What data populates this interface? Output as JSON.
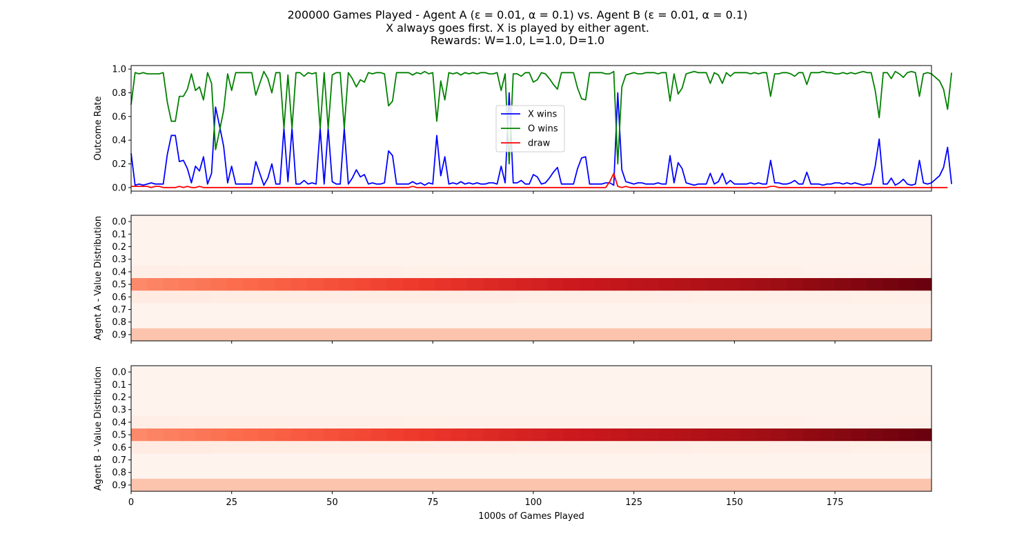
{
  "figure": {
    "title_lines": [
      "200000 Games Played - Agent A (ε = 0.01, α = 0.1) vs. Agent B (ε = 0.01, α = 0.1)",
      "X always goes first.  X is played by either agent.",
      "Rewards: W=1.0, L=1.0, D=1.0"
    ]
  },
  "chart_data": [
    {
      "type": "line",
      "ylabel": "Outcome Rate",
      "xlim": [
        0,
        199
      ],
      "ylim": [
        -0.03,
        1.03
      ],
      "xticks": [
        0,
        25,
        50,
        75,
        100,
        125,
        150,
        175
      ],
      "yticks": [
        0.0,
        0.2,
        0.4,
        0.6,
        0.8,
        1.0
      ],
      "ytick_labels": [
        "0.0",
        "0.2",
        "0.4",
        "0.6",
        "0.8",
        "1.0"
      ],
      "legend_position": "center",
      "series": [
        {
          "name": "X wins",
          "color": "#0000ff",
          "values": [
            0.29,
            0.02,
            0.03,
            0.02,
            0.03,
            0.04,
            0.03,
            0.03,
            0.03,
            0.28,
            0.44,
            0.44,
            0.22,
            0.23,
            0.16,
            0.04,
            0.18,
            0.14,
            0.26,
            0.03,
            0.12,
            0.68,
            0.52,
            0.35,
            0.04,
            0.18,
            0.03,
            0.03,
            0.03,
            0.03,
            0.03,
            0.22,
            0.12,
            0.02,
            0.08,
            0.2,
            0.03,
            0.03,
            0.5,
            0.05,
            0.5,
            0.03,
            0.03,
            0.06,
            0.03,
            0.04,
            0.03,
            0.5,
            0.03,
            0.5,
            0.05,
            0.03,
            0.03,
            0.5,
            0.03,
            0.08,
            0.15,
            0.09,
            0.11,
            0.03,
            0.04,
            0.03,
            0.03,
            0.04,
            0.31,
            0.27,
            0.03,
            0.03,
            0.03,
            0.03,
            0.05,
            0.03,
            0.04,
            0.02,
            0.04,
            0.03,
            0.44,
            0.1,
            0.26,
            0.03,
            0.04,
            0.03,
            0.05,
            0.03,
            0.04,
            0.03,
            0.04,
            0.03,
            0.03,
            0.04,
            0.04,
            0.03,
            0.18,
            0.04,
            0.8,
            0.04,
            0.04,
            0.06,
            0.03,
            0.03,
            0.11,
            0.09,
            0.03,
            0.04,
            0.08,
            0.13,
            0.17,
            0.03,
            0.03,
            0.03,
            0.03,
            0.16,
            0.25,
            0.26,
            0.03,
            0.03,
            0.03,
            0.03,
            0.04,
            0.04,
            0.02,
            0.8,
            0.15,
            0.05,
            0.04,
            0.03,
            0.04,
            0.04,
            0.03,
            0.03,
            0.03,
            0.04,
            0.03,
            0.03,
            0.27,
            0.04,
            0.21,
            0.16,
            0.04,
            0.03,
            0.02,
            0.03,
            0.03,
            0.03,
            0.12,
            0.03,
            0.05,
            0.12,
            0.03,
            0.06,
            0.03,
            0.03,
            0.03,
            0.03,
            0.04,
            0.03,
            0.04,
            0.03,
            0.03,
            0.23,
            0.04,
            0.04,
            0.03,
            0.03,
            0.04,
            0.06,
            0.03,
            0.03,
            0.13,
            0.03,
            0.03,
            0.03,
            0.02,
            0.03,
            0.03,
            0.04,
            0.04,
            0.03,
            0.04,
            0.03,
            0.04,
            0.03,
            0.02,
            0.03,
            0.03,
            0.18,
            0.41,
            0.03,
            0.03,
            0.08,
            0.02,
            0.04,
            0.07,
            0.03,
            0.02,
            0.03,
            0.23,
            0.04,
            0.03,
            0.04,
            0.07,
            0.1,
            0.17,
            0.34,
            0.03
          ]
        },
        {
          "name": "O wins",
          "color": "#008000",
          "values": [
            0.7,
            0.97,
            0.96,
            0.97,
            0.96,
            0.96,
            0.96,
            0.96,
            0.97,
            0.72,
            0.56,
            0.56,
            0.77,
            0.77,
            0.83,
            0.96,
            0.82,
            0.85,
            0.74,
            0.97,
            0.88,
            0.32,
            0.48,
            0.65,
            0.96,
            0.82,
            0.97,
            0.97,
            0.97,
            0.97,
            0.97,
            0.78,
            0.88,
            0.98,
            0.92,
            0.8,
            0.97,
            0.97,
            0.5,
            0.95,
            0.5,
            0.97,
            0.97,
            0.94,
            0.97,
            0.96,
            0.97,
            0.5,
            0.97,
            0.5,
            0.95,
            0.97,
            0.97,
            0.5,
            0.97,
            0.92,
            0.85,
            0.91,
            0.89,
            0.97,
            0.96,
            0.97,
            0.97,
            0.96,
            0.69,
            0.73,
            0.97,
            0.97,
            0.97,
            0.97,
            0.95,
            0.97,
            0.96,
            0.98,
            0.96,
            0.97,
            0.56,
            0.9,
            0.74,
            0.97,
            0.96,
            0.97,
            0.95,
            0.97,
            0.96,
            0.97,
            0.96,
            0.97,
            0.97,
            0.96,
            0.96,
            0.97,
            0.82,
            0.96,
            0.2,
            0.96,
            0.96,
            0.94,
            0.97,
            0.97,
            0.89,
            0.91,
            0.97,
            0.96,
            0.92,
            0.87,
            0.83,
            0.97,
            0.97,
            0.97,
            0.97,
            0.84,
            0.75,
            0.74,
            0.97,
            0.97,
            0.97,
            0.97,
            0.96,
            0.96,
            0.98,
            0.2,
            0.85,
            0.95,
            0.96,
            0.97,
            0.96,
            0.96,
            0.97,
            0.97,
            0.97,
            0.96,
            0.97,
            0.97,
            0.73,
            0.96,
            0.79,
            0.84,
            0.96,
            0.97,
            0.98,
            0.97,
            0.97,
            0.97,
            0.88,
            0.97,
            0.95,
            0.88,
            0.97,
            0.94,
            0.97,
            0.97,
            0.97,
            0.97,
            0.96,
            0.97,
            0.96,
            0.97,
            0.97,
            0.77,
            0.96,
            0.96,
            0.97,
            0.97,
            0.96,
            0.94,
            0.97,
            0.97,
            0.87,
            0.97,
            0.97,
            0.97,
            0.98,
            0.97,
            0.97,
            0.96,
            0.96,
            0.97,
            0.96,
            0.97,
            0.96,
            0.97,
            0.98,
            0.97,
            0.97,
            0.82,
            0.59,
            0.97,
            0.97,
            0.92,
            0.98,
            0.96,
            0.93,
            0.97,
            0.98,
            0.97,
            0.77,
            0.96,
            0.97,
            0.96,
            0.93,
            0.9,
            0.83,
            0.66,
            0.97
          ]
        },
        {
          "name": "draw",
          "color": "#ff0000",
          "values": [
            0.01,
            0.01,
            0.01,
            0.01,
            0.01,
            0.0,
            0.01,
            0.01,
            0.0,
            0.0,
            0.0,
            0.0,
            0.01,
            0.0,
            0.01,
            0.0,
            0.0,
            0.01,
            0.0,
            0.0,
            0.0,
            0.0,
            0.0,
            0.0,
            0.0,
            0.0,
            0.0,
            0.0,
            0.0,
            0.0,
            0.0,
            0.0,
            0.0,
            0.0,
            0.0,
            0.0,
            0.0,
            0.0,
            0.0,
            0.0,
            0.0,
            0.0,
            0.0,
            0.0,
            0.0,
            0.0,
            0.0,
            0.0,
            0.0,
            0.0,
            0.0,
            0.0,
            0.0,
            0.0,
            0.0,
            0.0,
            0.0,
            0.0,
            0.0,
            0.0,
            0.0,
            0.0,
            0.0,
            0.0,
            0.0,
            0.0,
            0.0,
            0.0,
            0.0,
            0.0,
            0.01,
            0.0,
            0.0,
            0.0,
            0.0,
            0.0,
            0.0,
            0.0,
            0.0,
            0.0,
            0.0,
            0.0,
            0.0,
            0.0,
            0.0,
            0.0,
            0.0,
            0.0,
            0.0,
            0.0,
            0.0,
            0.0,
            0.0,
            0.0,
            0.0,
            0.0,
            0.0,
            0.0,
            0.0,
            0.0,
            0.0,
            0.0,
            0.0,
            0.0,
            0.0,
            0.0,
            0.0,
            0.0,
            0.0,
            0.0,
            0.0,
            0.0,
            0.0,
            0.0,
            0.0,
            0.0,
            0.0,
            0.0,
            0.0,
            0.05,
            0.12,
            0.01,
            0.0,
            0.01,
            0.0,
            0.0,
            0.0,
            0.0,
            0.0,
            0.0,
            0.0,
            0.0,
            0.0,
            0.0,
            0.0,
            0.0,
            0.0,
            0.0,
            0.0,
            0.0,
            0.0,
            0.0,
            0.0,
            0.0,
            0.0,
            0.0,
            0.0,
            0.0,
            0.0,
            0.0,
            0.0,
            0.0,
            0.0,
            0.0,
            0.0,
            0.0,
            0.0,
            0.0,
            0.0,
            0.01,
            0.01,
            0.0,
            0.0,
            0.0,
            0.0,
            0.0,
            0.0,
            0.0,
            0.0,
            0.0,
            0.0,
            0.0,
            0.0,
            0.0,
            0.0,
            0.0,
            0.0,
            0.0,
            0.0,
            0.0,
            0.0,
            0.0,
            0.0,
            0.0,
            0.0,
            0.0,
            0.0,
            0.0,
            0.0,
            0.0,
            0.0,
            0.0,
            0.0,
            0.0,
            0.0,
            0.0,
            0.0,
            0.0,
            0.0,
            0.0,
            0.0,
            0.0,
            0.0,
            0.0
          ]
        }
      ]
    },
    {
      "type": "heatmap",
      "ylabel": "Agent A - Value Distribution",
      "colormap": "Reds",
      "xlim": [
        0,
        199
      ],
      "xticks": [
        0,
        25,
        50,
        75,
        100,
        125,
        150,
        175
      ],
      "y_categories": [
        "0.0",
        "0.1",
        "0.2",
        "0.3",
        "0.4",
        "0.5",
        "0.6",
        "0.7",
        "0.8",
        "0.9"
      ],
      "rows": [
        {
          "label": "0.5",
          "intensity_start": 0.4,
          "intensity_end": 1.0
        },
        {
          "label": "0.9",
          "intensity_start": 0.22,
          "intensity_end": 0.22
        },
        {
          "label": "0.4",
          "intensity_start": 0.04,
          "intensity_end": 0.02
        },
        {
          "label": "0.6",
          "intensity_start": 0.06,
          "intensity_end": 0.03
        },
        {
          "label": "other",
          "intensity_start": 0.01,
          "intensity_end": 0.01
        }
      ]
    },
    {
      "type": "heatmap",
      "ylabel": "Agent B - Value Distribution",
      "xlabel": "1000s of Games Played",
      "colormap": "Reds",
      "xlim": [
        0,
        199
      ],
      "xticks": [
        0,
        25,
        50,
        75,
        100,
        125,
        150,
        175
      ],
      "y_categories": [
        "0.0",
        "0.1",
        "0.2",
        "0.3",
        "0.4",
        "0.5",
        "0.6",
        "0.7",
        "0.8",
        "0.9"
      ],
      "rows": [
        {
          "label": "0.5",
          "intensity_start": 0.4,
          "intensity_end": 1.0
        },
        {
          "label": "0.9",
          "intensity_start": 0.22,
          "intensity_end": 0.22
        },
        {
          "label": "0.4",
          "intensity_start": 0.04,
          "intensity_end": 0.02
        },
        {
          "label": "0.6",
          "intensity_start": 0.06,
          "intensity_end": 0.03
        },
        {
          "label": "other",
          "intensity_start": 0.01,
          "intensity_end": 0.01
        }
      ]
    }
  ]
}
